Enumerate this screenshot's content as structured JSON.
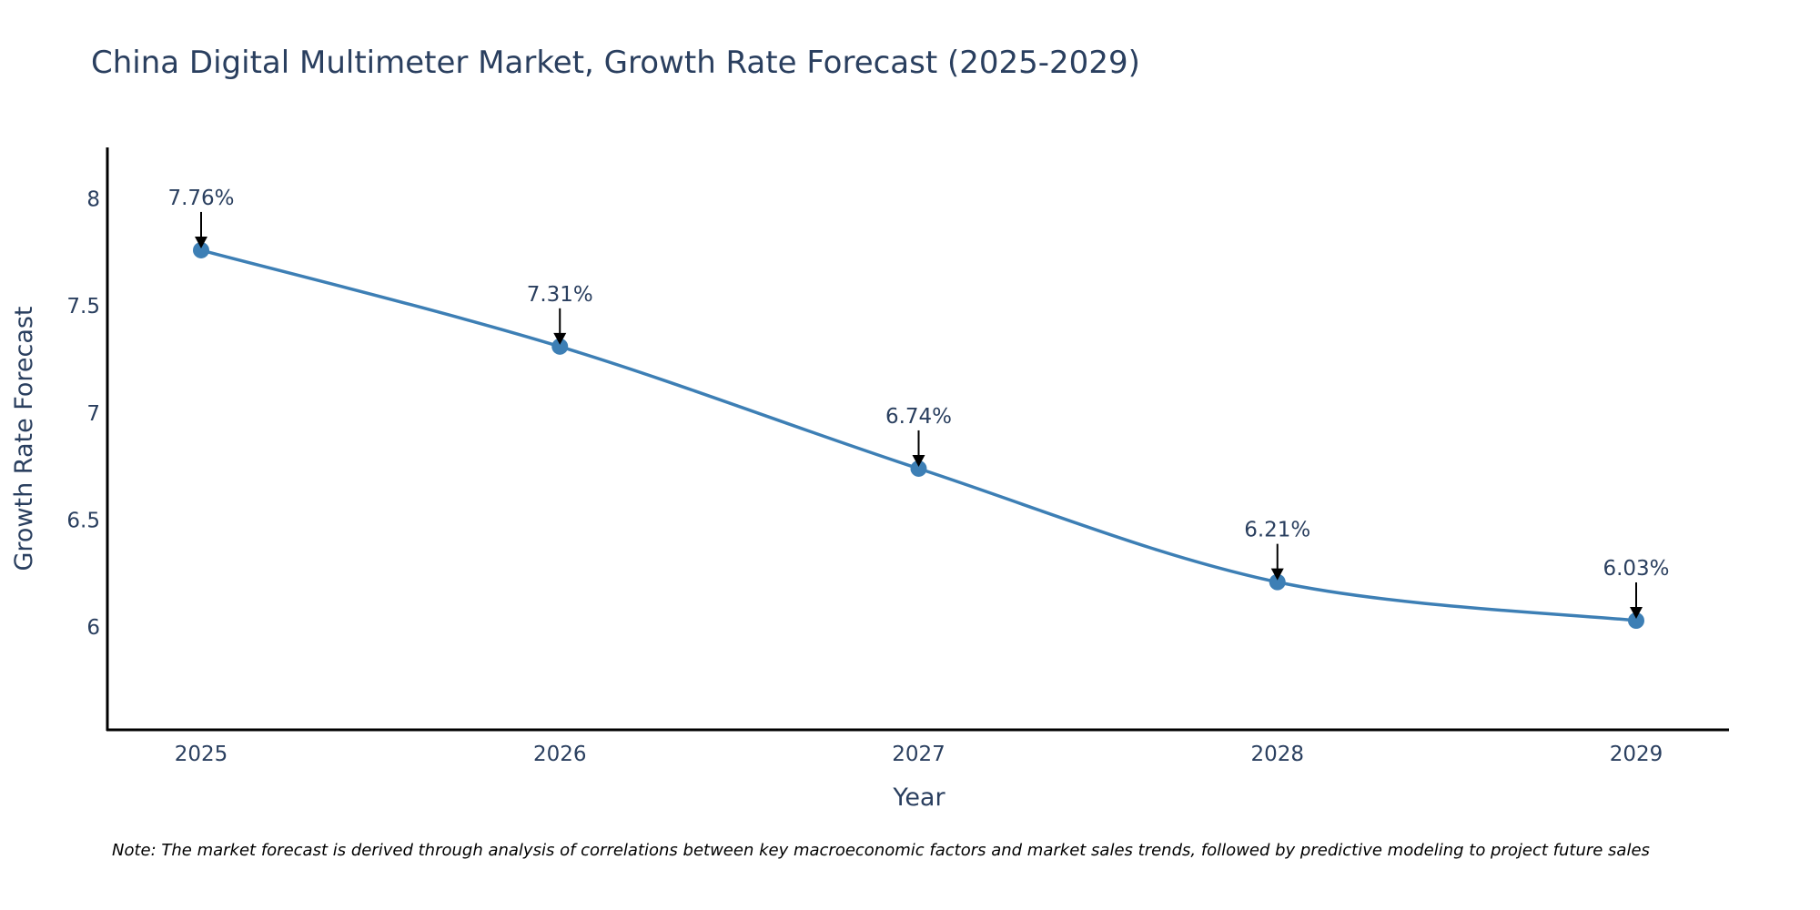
{
  "chart_data": {
    "type": "line",
    "title": "China Digital Multimeter Market, Growth Rate Forecast (2025-2029)",
    "xlabel": "Year",
    "ylabel": "Growth Rate Forecast",
    "x": [
      "2025",
      "2026",
      "2027",
      "2028",
      "2029"
    ],
    "series": [
      {
        "name": "Growth Rate Forecast",
        "values": [
          7.76,
          7.31,
          6.74,
          6.21,
          6.03
        ],
        "labels": [
          "7.76%",
          "7.31%",
          "6.74%",
          "6.21%",
          "6.03%"
        ],
        "color": "#3d7fb5",
        "line_shape": "spline",
        "markers": true
      }
    ],
    "yticks": [
      6,
      6.5,
      7,
      7.5,
      8
    ],
    "ytick_labels": [
      "6",
      "6.5",
      "7",
      "7.5",
      "8"
    ],
    "ylim": [
      5.52,
      8.24
    ],
    "grid": false,
    "legend": "none",
    "annotations": "arrow above each point with percentage label",
    "note": "Note: The market forecast is derived through analysis of correlations between key macroeconomic factors and market sales trends, followed by predictive modeling to project future sales"
  }
}
